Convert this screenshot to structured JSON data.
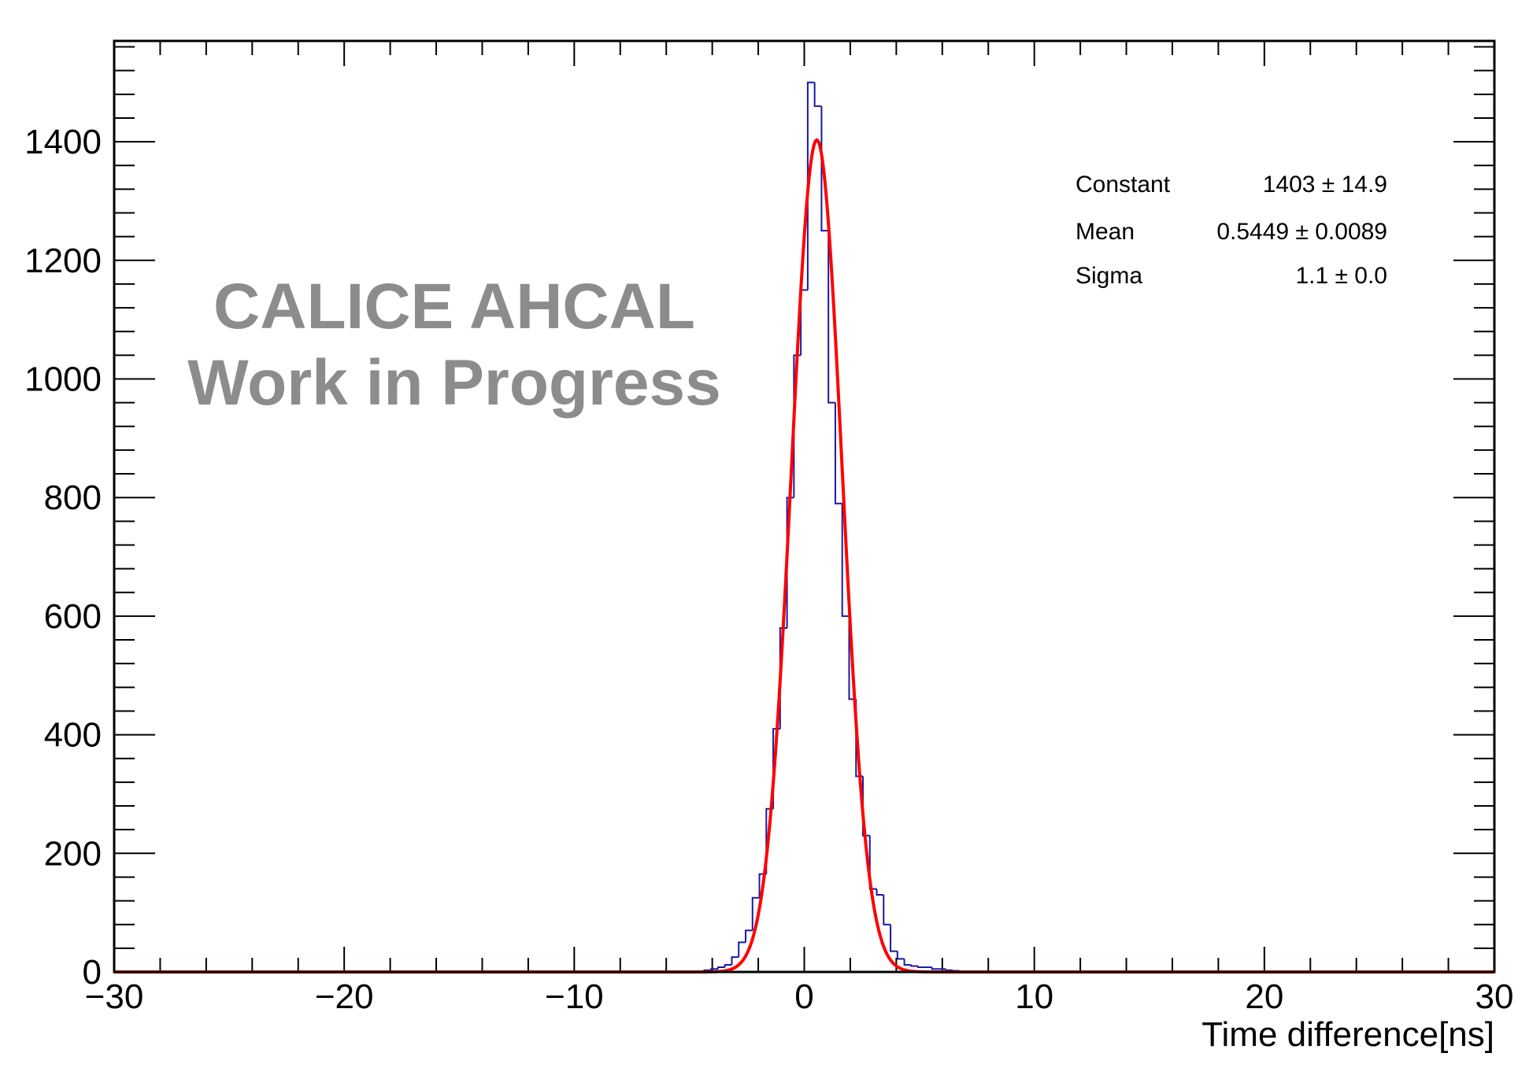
{
  "chart_data": {
    "type": "bar",
    "title": "",
    "xlabel": "Time difference[ns]",
    "ylabel": "",
    "xlim": [
      -30,
      30
    ],
    "ylim": [
      0,
      1570
    ],
    "x_ticks": [
      -30,
      -20,
      -10,
      0,
      10,
      20,
      30
    ],
    "x_tick_labels": [
      "−30",
      "−20",
      "−10",
      "0",
      "10",
      "20",
      "30"
    ],
    "y_ticks": [
      0,
      200,
      400,
      600,
      800,
      1000,
      1200,
      1400
    ],
    "y_tick_labels": [
      "0",
      "200",
      "400",
      "600",
      "800",
      "1000",
      "1200",
      "1400"
    ],
    "grid": false,
    "histogram": {
      "name": "",
      "color": "#1a1aa0",
      "bin_width": 0.3,
      "bins": [
        {
          "x": -4.2,
          "count": 3
        },
        {
          "x": -3.9,
          "count": 5
        },
        {
          "x": -3.6,
          "count": 8
        },
        {
          "x": -3.3,
          "count": 12
        },
        {
          "x": -3.0,
          "count": 25
        },
        {
          "x": -2.7,
          "count": 50
        },
        {
          "x": -2.4,
          "count": 70
        },
        {
          "x": -2.1,
          "count": 125
        },
        {
          "x": -1.8,
          "count": 165
        },
        {
          "x": -1.5,
          "count": 275
        },
        {
          "x": -1.2,
          "count": 410
        },
        {
          "x": -0.9,
          "count": 580
        },
        {
          "x": -0.6,
          "count": 800
        },
        {
          "x": -0.3,
          "count": 1040
        },
        {
          "x": 0.0,
          "count": 1150
        },
        {
          "x": 0.3,
          "count": 1500
        },
        {
          "x": 0.6,
          "count": 1460
        },
        {
          "x": 0.9,
          "count": 1250
        },
        {
          "x": 1.2,
          "count": 960
        },
        {
          "x": 1.5,
          "count": 790
        },
        {
          "x": 1.8,
          "count": 600
        },
        {
          "x": 2.1,
          "count": 460
        },
        {
          "x": 2.4,
          "count": 330
        },
        {
          "x": 2.7,
          "count": 230
        },
        {
          "x": 3.0,
          "count": 140
        },
        {
          "x": 3.3,
          "count": 130
        },
        {
          "x": 3.6,
          "count": 80
        },
        {
          "x": 3.9,
          "count": 35
        },
        {
          "x": 4.2,
          "count": 22
        },
        {
          "x": 4.5,
          "count": 12
        },
        {
          "x": 4.8,
          "count": 10
        },
        {
          "x": 5.1,
          "count": 8
        },
        {
          "x": 5.4,
          "count": 8
        },
        {
          "x": 5.7,
          "count": 5
        },
        {
          "x": 6.0,
          "count": 5
        },
        {
          "x": 6.3,
          "count": 3
        },
        {
          "x": 6.6,
          "count": 2
        }
      ]
    },
    "fit": {
      "name": "",
      "function": "gaus",
      "color": "#ff0000",
      "constant": 1403,
      "mean": 0.5449,
      "sigma": 1.1
    },
    "stats_box": {
      "position": "top-right",
      "rows": [
        {
          "label": "Constant",
          "value": "1403 ± 14.9"
        },
        {
          "label": "Mean",
          "value": "0.5449 ± 0.0089"
        },
        {
          "label": "Sigma",
          "value": "1.1 ± 0.0"
        }
      ]
    },
    "annotations": {
      "watermark_line1": "CALICE AHCAL",
      "watermark_line2": "Work in Progress"
    }
  }
}
